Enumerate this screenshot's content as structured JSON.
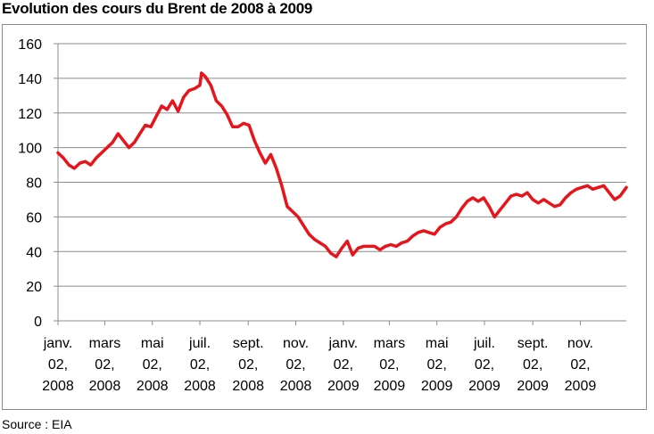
{
  "chart_data": {
    "type": "line",
    "title": "Evolution des cours du Brent de 2008 à 2009",
    "xlabel": "",
    "ylabel": "",
    "ylim": [
      0,
      160
    ],
    "yticks": [
      0,
      20,
      40,
      60,
      80,
      100,
      120,
      140,
      160
    ],
    "grid": true,
    "legend": "none",
    "line_color": "#e8141b",
    "xrange": [
      "2008-01-02",
      "2009-12-31"
    ],
    "xticks": [
      {
        "date": "2008-01-02",
        "lines": [
          "janv.",
          "02,",
          "2008"
        ]
      },
      {
        "date": "2008-03-02",
        "lines": [
          "mars",
          "02,",
          "2008"
        ]
      },
      {
        "date": "2008-05-02",
        "lines": [
          "mai",
          "02,",
          "2008"
        ]
      },
      {
        "date": "2008-07-02",
        "lines": [
          "juil.",
          "02,",
          "2008"
        ]
      },
      {
        "date": "2008-09-02",
        "lines": [
          "sept.",
          "02,",
          "2008"
        ]
      },
      {
        "date": "2008-11-02",
        "lines": [
          "nov.",
          "02,",
          "2008"
        ]
      },
      {
        "date": "2009-01-02",
        "lines": [
          "janv.",
          "02,",
          "2009"
        ]
      },
      {
        "date": "2009-03-02",
        "lines": [
          "mars",
          "02,",
          "2009"
        ]
      },
      {
        "date": "2009-05-02",
        "lines": [
          "mai",
          "02,",
          "2009"
        ]
      },
      {
        "date": "2009-07-02",
        "lines": [
          "juil.",
          "02,",
          "2009"
        ]
      },
      {
        "date": "2009-09-02",
        "lines": [
          "sept.",
          "02,",
          "2009"
        ]
      },
      {
        "date": "2009-11-02",
        "lines": [
          "nov.",
          "02,",
          "2009"
        ]
      }
    ],
    "series": [
      {
        "x": [
          "2008-01-02",
          "2008-01-09",
          "2008-01-16",
          "2008-01-23",
          "2008-01-30",
          "2008-02-06",
          "2008-02-13",
          "2008-02-20",
          "2008-02-27",
          "2008-03-05",
          "2008-03-12",
          "2008-03-19",
          "2008-03-26",
          "2008-04-02",
          "2008-04-09",
          "2008-04-16",
          "2008-04-23",
          "2008-04-30",
          "2008-05-07",
          "2008-05-14",
          "2008-05-21",
          "2008-05-28",
          "2008-06-04",
          "2008-06-11",
          "2008-06-18",
          "2008-06-25",
          "2008-07-02",
          "2008-07-04",
          "2008-07-09",
          "2008-07-16",
          "2008-07-23",
          "2008-07-30",
          "2008-08-06",
          "2008-08-13",
          "2008-08-20",
          "2008-08-27",
          "2008-09-03",
          "2008-09-10",
          "2008-09-17",
          "2008-09-24",
          "2008-10-01",
          "2008-10-08",
          "2008-10-15",
          "2008-10-22",
          "2008-10-29",
          "2008-11-05",
          "2008-11-12",
          "2008-11-19",
          "2008-11-26",
          "2008-12-03",
          "2008-12-10",
          "2008-12-17",
          "2008-12-24",
          "2008-12-31",
          "2009-01-07",
          "2009-01-14",
          "2009-01-21",
          "2009-01-28",
          "2009-02-04",
          "2009-02-11",
          "2009-02-18",
          "2009-02-25",
          "2009-03-04",
          "2009-03-11",
          "2009-03-18",
          "2009-03-25",
          "2009-04-01",
          "2009-04-08",
          "2009-04-15",
          "2009-04-22",
          "2009-04-29",
          "2009-05-06",
          "2009-05-13",
          "2009-05-20",
          "2009-05-27",
          "2009-06-03",
          "2009-06-10",
          "2009-06-17",
          "2009-06-24",
          "2009-07-01",
          "2009-07-08",
          "2009-07-15",
          "2009-07-22",
          "2009-07-29",
          "2009-08-05",
          "2009-08-12",
          "2009-08-19",
          "2009-08-26",
          "2009-09-02",
          "2009-09-09",
          "2009-09-16",
          "2009-09-23",
          "2009-09-30",
          "2009-10-07",
          "2009-10-14",
          "2009-10-21",
          "2009-10-28",
          "2009-11-04",
          "2009-11-11",
          "2009-11-18",
          "2009-11-25",
          "2009-12-02",
          "2009-12-09",
          "2009-12-16",
          "2009-12-23",
          "2009-12-31"
        ],
        "y": [
          97,
          94,
          90,
          88,
          91,
          92,
          90,
          94,
          97,
          100,
          103,
          108,
          104,
          100,
          103,
          108,
          113,
          112,
          118,
          124,
          122,
          127,
          121,
          129,
          133,
          134,
          136,
          143,
          141,
          136,
          127,
          124,
          119,
          112,
          112,
          114,
          113,
          104,
          97,
          91,
          96,
          88,
          78,
          66,
          63,
          60,
          55,
          50,
          47,
          45,
          43,
          39,
          37,
          42,
          46,
          38,
          42,
          43,
          43,
          43,
          41,
          43,
          44,
          43,
          45,
          46,
          49,
          51,
          52,
          51,
          50,
          54,
          56,
          57,
          60,
          65,
          69,
          71,
          69,
          71,
          66,
          60,
          64,
          68,
          72,
          73,
          72,
          74,
          70,
          68,
          70,
          68,
          66,
          67,
          71,
          74,
          76,
          77,
          78,
          76,
          77,
          78,
          74,
          70,
          72,
          77
        ]
      }
    ]
  },
  "source_note": "Source : EIA"
}
